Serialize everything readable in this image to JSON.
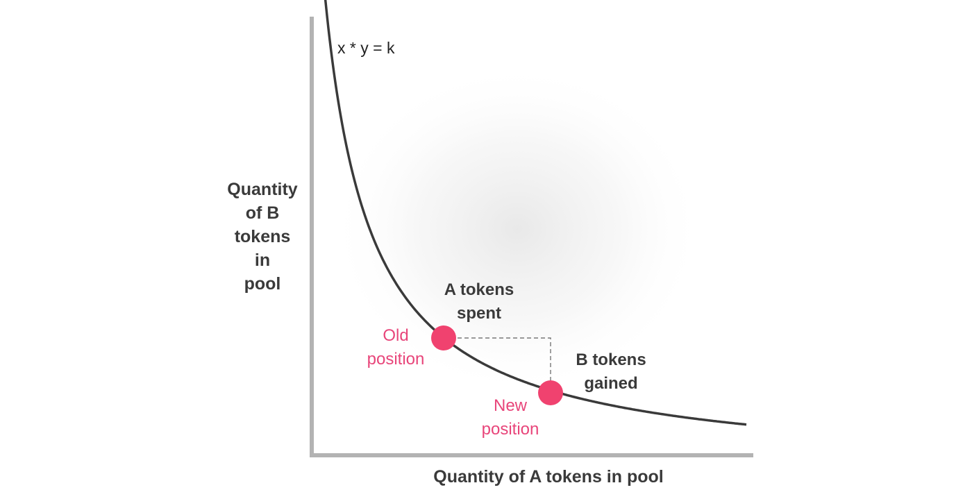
{
  "diagram": {
    "formula": "x * y = k",
    "y_axis_label": [
      "Quantity",
      "of B",
      "tokens",
      "in",
      "pool"
    ],
    "x_axis_label": "Quantity of A tokens in pool",
    "annotations": {
      "a_spent": [
        "A tokens",
        "spent"
      ],
      "b_gained": [
        "B tokens",
        "gained"
      ],
      "old_position": [
        "Old",
        "position"
      ],
      "new_position": [
        "New",
        "position"
      ]
    },
    "colors": {
      "curve": "#3a3a3a",
      "axis": "#b3b3b3",
      "point": "#f0426f",
      "pink_text": "#e8457a",
      "dashed": "#777777",
      "glow": "#ececec"
    }
  }
}
